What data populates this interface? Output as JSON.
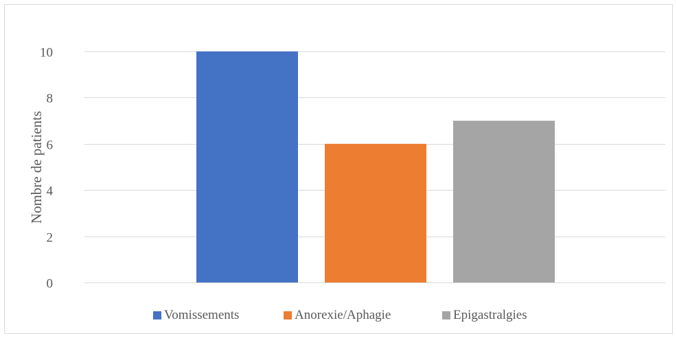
{
  "chart_data": {
    "type": "bar",
    "categories": [
      "Vomissements",
      "Anorexie/Aphagie",
      "Epigastralgies"
    ],
    "values": [
      10,
      6,
      7
    ],
    "colors": [
      "#4472c4",
      "#ed7d31",
      "#a5a5a5"
    ],
    "title": "",
    "xlabel": "",
    "ylabel": "Nombre de patients",
    "ylim": [
      0,
      11
    ],
    "yticks": [
      0,
      2,
      4,
      6,
      8,
      10
    ],
    "grid": true,
    "legend": "bottom"
  }
}
